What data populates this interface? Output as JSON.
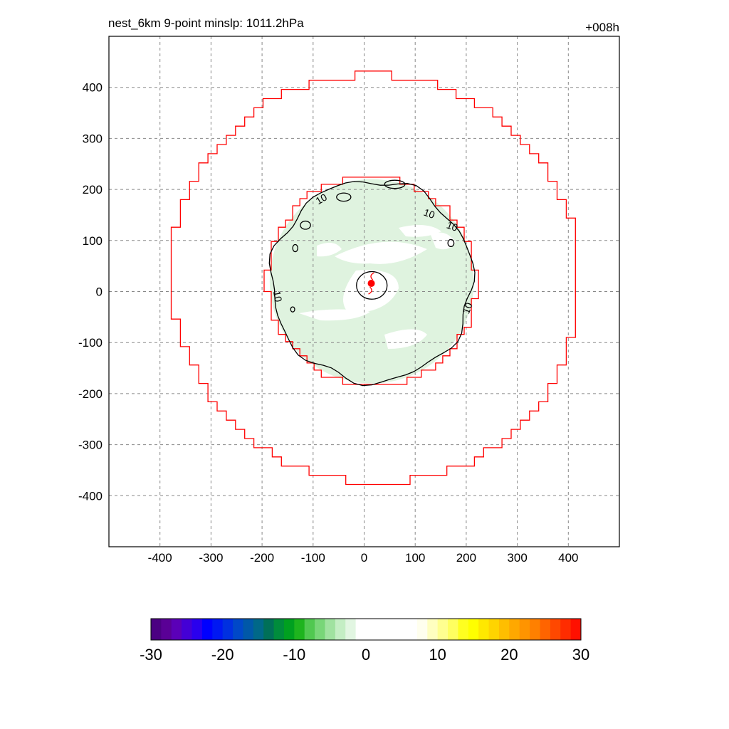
{
  "chart_data": {
    "type": "heatmap",
    "title_left": "nest_6km  9-point minslp: 1011.2hPa",
    "title_right": "+008h",
    "xlim": [
      -500,
      500
    ],
    "ylim": [
      -500,
      500
    ],
    "x_ticks": [
      -400,
      -300,
      -200,
      -100,
      0,
      100,
      200,
      300,
      400
    ],
    "y_ticks": [
      400,
      300,
      200,
      100,
      0,
      -100,
      -200,
      -300,
      -400
    ],
    "grid": true,
    "contour_level_label": "10",
    "storm_center": [
      14,
      16
    ],
    "outer_domain_radius": 400,
    "inner_domain_radius": 205,
    "colorbar": {
      "min": -30,
      "max": 30,
      "tick_values": [
        -30,
        -20,
        -10,
        0,
        10,
        20,
        30
      ],
      "tick_labels": [
        "-30",
        "-20",
        "-10",
        "0",
        "10",
        "20",
        "30"
      ],
      "colors": [
        "#4b0082",
        "#5a0096",
        "#5b00b8",
        "#4400d6",
        "#2a00ee",
        "#0000ff",
        "#0018f2",
        "#0030e0",
        "#0048c8",
        "#0058a8",
        "#006888",
        "#007058",
        "#008c3c",
        "#00a020",
        "#1eb41e",
        "#50c850",
        "#78d678",
        "#a0e2a0",
        "#c4eec4",
        "#e2f6e2",
        "#ffffff",
        "#ffffff",
        "#ffffff",
        "#ffffff",
        "#ffffff",
        "#ffffff",
        "#ffffee",
        "#ffffc0",
        "#ffff90",
        "#ffff60",
        "#ffff20",
        "#ffff00",
        "#ffe800",
        "#ffd400",
        "#ffbe00",
        "#ffa800",
        "#ff9400",
        "#ff8000",
        "#ff6400",
        "#ff4800",
        "#ff2c00",
        "#ff1000"
      ]
    },
    "colors": {
      "domain_outline": "#ff0000",
      "contour": "#000000",
      "fill": "#dff3df",
      "grid": "#888888",
      "storm_marker": "#ff0000"
    }
  }
}
